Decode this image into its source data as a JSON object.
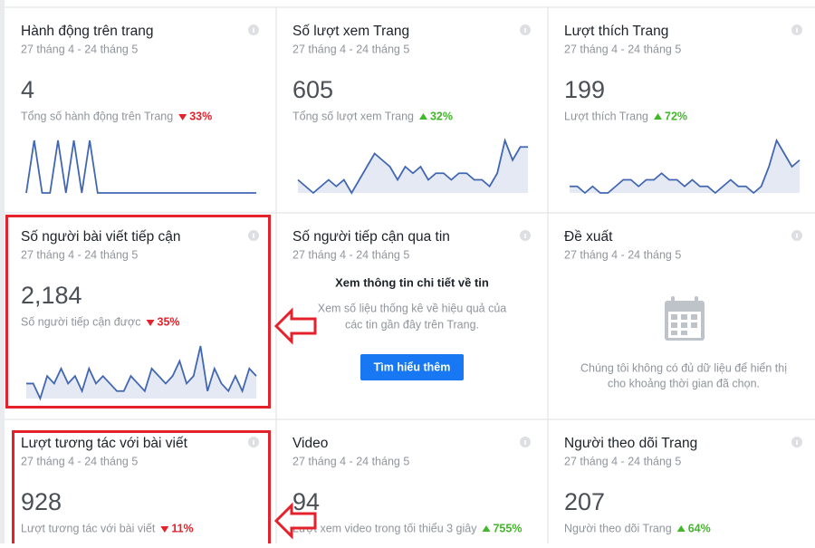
{
  "cards": [
    {
      "title": "Hành động trên trang",
      "date": "27 tháng 4 - 24 tháng 5",
      "value": "4",
      "subtitle": "Tổng số hành động trên Trang",
      "change": "33%",
      "direction": "down",
      "sparkline": {
        "area": false,
        "values": [
          0,
          1,
          0,
          0,
          1,
          0,
          1,
          0,
          1,
          0,
          0,
          0,
          0,
          0,
          0,
          0,
          0,
          0,
          0,
          0,
          0,
          0,
          0,
          0,
          0,
          0,
          0,
          0,
          0,
          0
        ]
      }
    },
    {
      "title": "Số lượt xem Trang",
      "date": "27 tháng 4 - 24 tháng 5",
      "value": "605",
      "subtitle": "Tổng số lượt xem Trang",
      "change": "32%",
      "direction": "up",
      "sparkline": {
        "area": true,
        "values": [
          3,
          2,
          1,
          2,
          3,
          2,
          3,
          1,
          3,
          5,
          7,
          6,
          5,
          3,
          5,
          4,
          5,
          3,
          4,
          4,
          3,
          4,
          4,
          3,
          3,
          2,
          4,
          9,
          6,
          8,
          8
        ]
      }
    },
    {
      "title": "Lượt thích Trang",
      "date": "27 tháng 4 - 24 tháng 5",
      "value": "199",
      "subtitle": "Lượt thích Trang",
      "change": "72%",
      "direction": "up",
      "sparkline": {
        "area": true,
        "values": [
          1,
          1,
          0,
          1,
          0,
          0,
          1,
          2,
          2,
          1,
          2,
          2,
          3,
          2,
          2,
          1,
          2,
          1,
          1,
          0,
          1,
          2,
          1,
          1,
          0,
          1,
          4,
          8,
          6,
          4,
          5
        ]
      }
    },
    {
      "title": "Số người bài viết tiếp cận",
      "date": "27 tháng 4 - 24 tháng 5",
      "value": "2,184",
      "subtitle": "Số người tiếp cận được",
      "change": "35%",
      "direction": "down",
      "sparkline": {
        "area": true,
        "values": [
          5,
          5,
          3,
          6,
          5,
          7,
          5,
          6,
          4,
          7,
          5,
          6,
          5,
          4,
          4,
          6,
          5,
          4,
          7,
          6,
          5,
          6,
          8,
          5,
          6,
          10,
          4,
          7,
          5,
          4,
          6,
          4,
          7,
          6
        ]
      }
    },
    {
      "title": "Số người tiếp cận qua tin",
      "date": "27 tháng 4 - 24 tháng 5",
      "message": {
        "heading": "Xem thông tin chi tiết về tin",
        "lines": [
          "Xem số liệu thống kê về hiệu quả của",
          "các tin gần đây trên Trang."
        ],
        "button": "Tìm hiểu thêm"
      }
    },
    {
      "title": "Đề xuất",
      "date": "27 tháng 4 - 24 tháng 5",
      "empty": {
        "lines": [
          "Chúng tôi không có đủ dữ liệu để hiển thị",
          "cho khoảng thời gian đã chọn."
        ]
      }
    },
    {
      "title": "Lượt tương tác với bài viết",
      "date": "27 tháng 4 - 24 tháng 5",
      "value": "928",
      "subtitle": "Lượt tương tác với bài viết",
      "change": "11%",
      "direction": "down"
    },
    {
      "title": "Video",
      "date": "27 tháng 4 - 24 tháng 5",
      "value": "94",
      "subtitle": "Lượt xem video trong tối thiểu 3 giây",
      "change": "755%",
      "direction": "up"
    },
    {
      "title": "Người theo dõi Trang",
      "date": "27 tháng 4 - 24 tháng 5",
      "value": "207",
      "subtitle": "Người theo dõi Trang",
      "change": "64%",
      "direction": "up"
    }
  ]
}
